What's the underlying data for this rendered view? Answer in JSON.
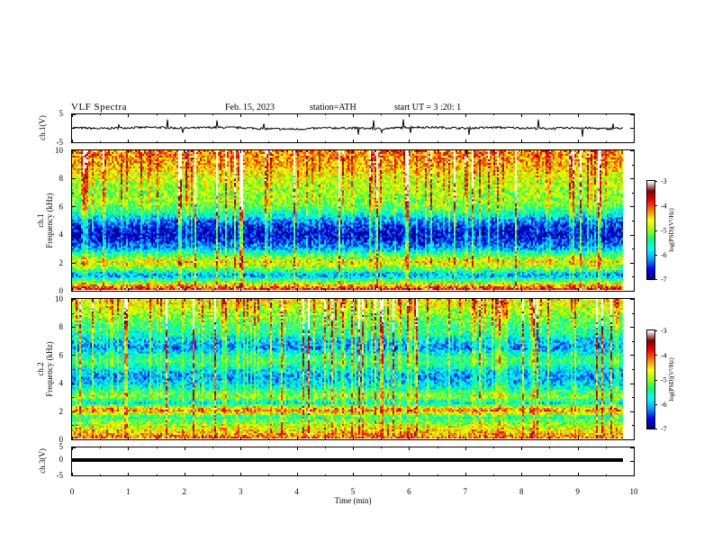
{
  "header": {
    "title": "VLF Spectra",
    "date": "Feb. 15, 2023",
    "station": "station=ATH",
    "start": "start UT =  3 :20: 1"
  },
  "chart_data": [
    {
      "type": "line",
      "id": "ch1-waveform",
      "ylabel": "ch.1(V)",
      "ylim": [
        -5,
        5
      ],
      "yticks": [
        "5",
        "-5"
      ],
      "xlim": [
        0,
        10
      ],
      "x": [
        0.0,
        0.5,
        1.0,
        1.5,
        2.0,
        2.5,
        3.0,
        3.5,
        4.0,
        4.5,
        5.0,
        5.5,
        6.0,
        6.5,
        7.0,
        7.5,
        8.0,
        8.5,
        9.0,
        9.5,
        9.8
      ],
      "values": [
        0.2,
        -0.1,
        0.2,
        0.3,
        0.0,
        0.3,
        0.2,
        -0.2,
        -0.3,
        0.1,
        0.1,
        -0.2,
        0.4,
        0.3,
        0.0,
        0.3,
        0.1,
        -0.1,
        0.2,
        -0.2,
        0.1
      ]
    },
    {
      "type": "heatmap",
      "id": "ch1-spectrogram",
      "ylabel": "ch.1\nFrequency (kHz)",
      "xlim": [
        0,
        9.8
      ],
      "ylim": [
        0,
        10
      ],
      "yticks": [
        "0",
        "2",
        "4",
        "6",
        "8",
        "10"
      ],
      "colorbar": {
        "label": "log(PSD)(V²/Hz)",
        "range": [
          -7,
          -3
        ],
        "ticks": [
          "-3",
          "-4",
          "-5",
          "-6",
          "-7"
        ]
      },
      "freq_bands_khz": [
        0,
        0.5,
        1,
        1.5,
        2,
        2.5,
        3,
        3.5,
        4,
        4.5,
        5,
        5.5,
        6,
        6.5,
        7,
        7.5,
        8,
        8.5,
        9,
        9.5,
        10
      ],
      "band_level_logpsd": [
        -3.8,
        -5.0,
        -6.2,
        -5.2,
        -4.6,
        -5.4,
        -6.2,
        -6.6,
        -6.8,
        -6.6,
        -6.2,
        -5.6,
        -5.2,
        -5.0,
        -5.0,
        -4.9,
        -4.8,
        -4.6,
        -4.4,
        -4.3,
        -4.2
      ]
    },
    {
      "type": "heatmap",
      "id": "ch2-spectrogram",
      "ylabel": "ch.2\nFrequency (kHz)",
      "xlim": [
        0,
        9.8
      ],
      "ylim": [
        0,
        10
      ],
      "yticks": [
        "0",
        "2",
        "4",
        "6",
        "8",
        "10"
      ],
      "colorbar": {
        "label": "log(PSD)(V²/Hz)",
        "range": [
          -7,
          -3
        ],
        "ticks": [
          "-3",
          "-4",
          "-5",
          "-6",
          "-7"
        ]
      },
      "freq_bands_khz": [
        0,
        0.5,
        1,
        1.5,
        2,
        2.5,
        3,
        3.5,
        4,
        4.5,
        5,
        5.5,
        6,
        6.5,
        7,
        7.5,
        8,
        8.5,
        9,
        9.5,
        10
      ],
      "band_level_logpsd": [
        -4.2,
        -4.6,
        -5.0,
        -5.6,
        -4.2,
        -5.8,
        -5.0,
        -5.6,
        -6.0,
        -6.2,
        -5.8,
        -5.4,
        -5.6,
        -6.2,
        -6.0,
        -5.6,
        -5.4,
        -5.2,
        -5.0,
        -4.8,
        -4.6
      ]
    },
    {
      "type": "line",
      "id": "ch3-waveform",
      "ylabel": "ch.3(V)",
      "ylim": [
        -5,
        5
      ],
      "yticks": [
        "5",
        "0",
        "-5"
      ],
      "xlim": [
        0,
        10
      ],
      "xlabel": "Time (min)",
      "xticks": [
        "0",
        "1",
        "2",
        "3",
        "4",
        "5",
        "6",
        "7",
        "8",
        "9",
        "10"
      ],
      "x": [
        0.0,
        9.8
      ],
      "values": [
        0.0,
        0.0
      ]
    }
  ],
  "colors": {
    "waveform": "#000000",
    "colormap": [
      "#000080",
      "#0000ff",
      "#00a0ff",
      "#00ffff",
      "#00ff80",
      "#a0ff00",
      "#ffff00",
      "#ff8000",
      "#ff0000",
      "#800000",
      "#ffffff"
    ]
  }
}
